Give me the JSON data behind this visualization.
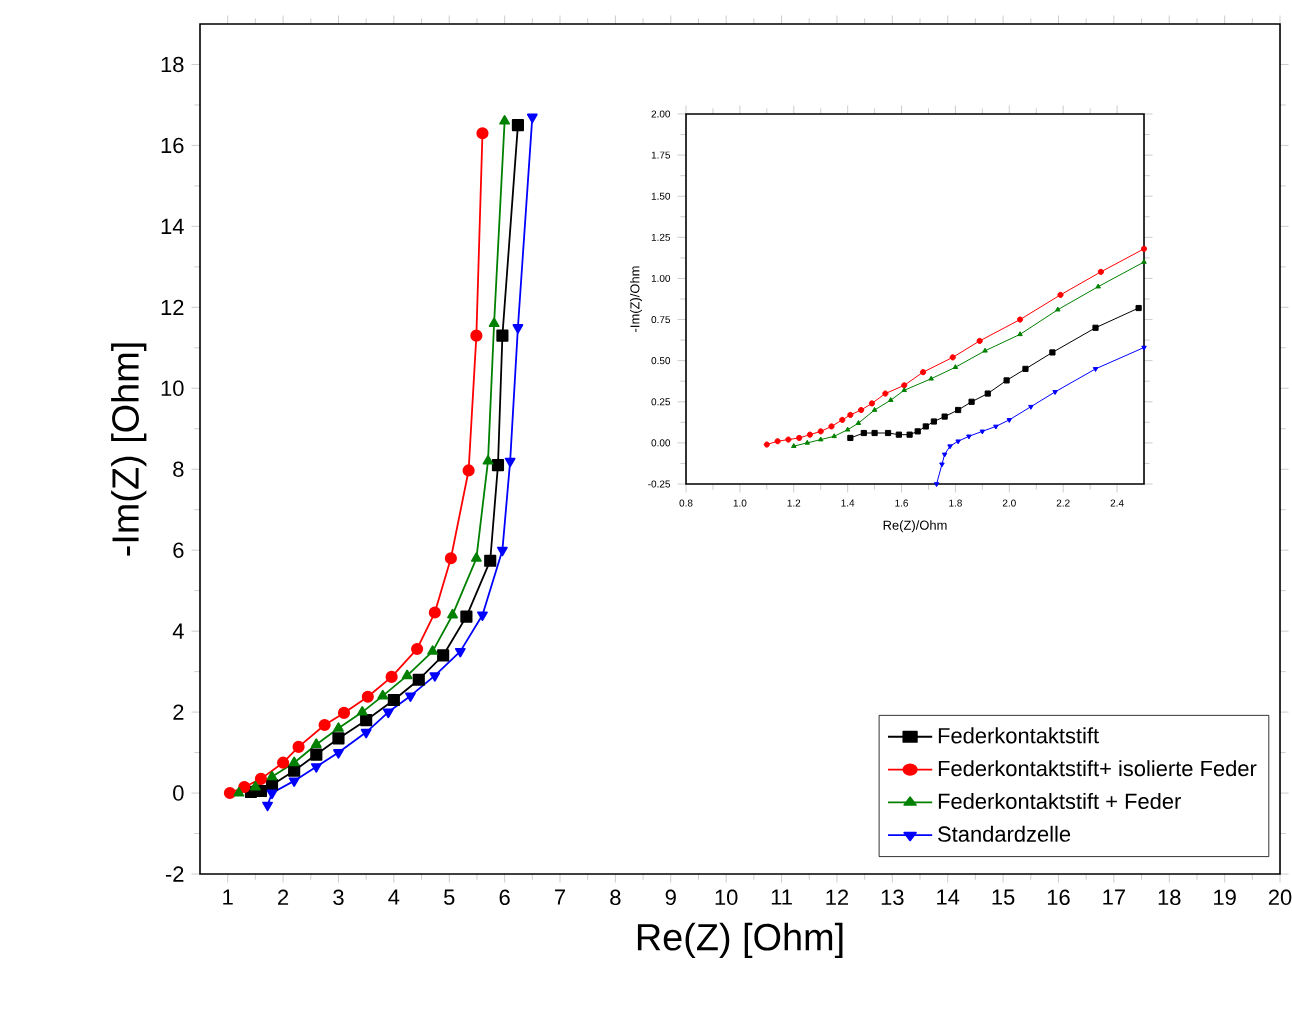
{
  "chart_data": [
    {
      "type": "line",
      "xlabel": "Re(Z) [Ohm]",
      "ylabel": "-Im(Z) [Ohm]",
      "xlim": [
        0.5,
        20
      ],
      "ylim": [
        -2,
        19
      ],
      "xticks": [
        1,
        2,
        3,
        4,
        5,
        6,
        7,
        8,
        9,
        10,
        11,
        12,
        13,
        14,
        15,
        16,
        17,
        18,
        19,
        20
      ],
      "yticks": [
        -2,
        0,
        2,
        4,
        6,
        8,
        10,
        12,
        14,
        16,
        18
      ],
      "legend": "bottom right",
      "line_style": "solid",
      "series": [
        {
          "name": "Federkontaktstift",
          "color": "#000000",
          "marker": "square",
          "x": [
            1.42,
            1.6,
            1.8,
            2.2,
            2.6,
            3.0,
            3.5,
            4.0,
            4.45,
            4.89,
            5.31,
            5.74,
            5.88,
            5.96,
            6.24
          ],
          "values": [
            0.03,
            0.05,
            0.2,
            0.55,
            0.95,
            1.35,
            1.8,
            2.3,
            2.8,
            3.4,
            4.36,
            5.74,
            8.1,
            11.3,
            16.5
          ]
        },
        {
          "name": "Federkontaktstift+ isolierte Feder",
          "color": "#ff0000",
          "marker": "circle",
          "x": [
            1.04,
            1.3,
            1.6,
            2.0,
            2.28,
            2.75,
            3.1,
            3.53,
            3.96,
            4.42,
            4.74,
            5.03,
            5.35,
            5.49,
            5.6
          ],
          "values": [
            0,
            0.15,
            0.35,
            0.75,
            1.14,
            1.68,
            1.98,
            2.38,
            2.87,
            3.56,
            4.46,
            5.8,
            7.97,
            11.3,
            16.3
          ]
        },
        {
          "name": "Federkontaktstift + Feder",
          "color": "#008000",
          "marker": "triangle",
          "x": [
            1.2,
            1.5,
            1.8,
            2.2,
            2.6,
            3.0,
            3.43,
            3.8,
            4.24,
            4.7,
            5.06,
            5.49,
            5.7,
            5.81,
            6.0
          ],
          "values": [
            0,
            0.15,
            0.4,
            0.75,
            1.2,
            1.6,
            2.0,
            2.4,
            2.9,
            3.5,
            4.4,
            5.8,
            8.2,
            11.6,
            16.6
          ]
        },
        {
          "name": "Standardzelle",
          "color": "#0000ff",
          "marker": "triangle-down",
          "x": [
            1.72,
            1.8,
            2.2,
            2.6,
            3.0,
            3.5,
            3.9,
            4.3,
            4.74,
            5.2,
            5.6,
            5.96,
            6.1,
            6.24,
            6.5
          ],
          "values": [
            -0.3,
            0,
            0.3,
            0.65,
            1.0,
            1.5,
            2.0,
            2.4,
            2.9,
            3.5,
            4.4,
            6.0,
            8.2,
            11.5,
            16.7
          ]
        }
      ]
    },
    {
      "type": "line",
      "xlabel": "Re(Z)/Ohm",
      "ylabel": "-Im(Z)/Ohm",
      "xlim": [
        0.8,
        2.5
      ],
      "ylim": [
        -0.25,
        2.0
      ],
      "xticks": [
        0.8,
        {
          "value": 1,
          "label": "1.0"
        },
        1.2,
        1.4,
        1.6,
        1.8,
        {
          "value": 2,
          "label": "2.0"
        },
        2.2,
        2.4
      ],
      "yticks": [
        -0.25,
        {
          "value": 0,
          "label": "0.00"
        },
        0.25,
        {
          "value": 0.5,
          "label": "0.50"
        },
        0.75,
        {
          "value": 1,
          "label": "1.00"
        },
        1.25,
        {
          "value": 1.5,
          "label": "1.50"
        },
        1.75,
        {
          "value": 2,
          "label": "2.00"
        }
      ],
      "legend": false,
      "line_style": "solid",
      "series": [
        {
          "color": "#000000",
          "marker": "square",
          "x": [
            1.41,
            1.46,
            1.5,
            1.55,
            1.59,
            1.63,
            1.66,
            1.69,
            1.72,
            1.76,
            1.81,
            1.86,
            1.92,
            1.99,
            2.06,
            2.16,
            2.32,
            2.48
          ],
          "values": [
            0.03,
            0.06,
            0.06,
            0.06,
            0.05,
            0.05,
            0.07,
            0.1,
            0.13,
            0.16,
            0.2,
            0.25,
            0.3,
            0.38,
            0.45,
            0.55,
            0.7,
            0.82
          ]
        },
        {
          "color": "#ff0000",
          "marker": "circle",
          "x": [
            1.1,
            1.14,
            1.18,
            1.22,
            1.26,
            1.3,
            1.34,
            1.38,
            1.41,
            1.45,
            1.49,
            1.54,
            1.61,
            1.68,
            1.79,
            1.89,
            2.04,
            2.19,
            2.34,
            2.5
          ],
          "values": [
            -0.01,
            0.01,
            0.02,
            0.03,
            0.05,
            0.07,
            0.1,
            0.14,
            0.17,
            0.2,
            0.24,
            0.3,
            0.35,
            0.43,
            0.52,
            0.62,
            0.75,
            0.9,
            1.04,
            1.18
          ]
        },
        {
          "color": "#008000",
          "marker": "triangle",
          "x": [
            1.2,
            1.25,
            1.3,
            1.35,
            1.4,
            1.44,
            1.5,
            1.56,
            1.61,
            1.71,
            1.8,
            1.91,
            2.04,
            2.18,
            2.33,
            2.5
          ],
          "values": [
            -0.02,
            0,
            0.02,
            0.04,
            0.08,
            0.12,
            0.2,
            0.26,
            0.32,
            0.39,
            0.46,
            0.56,
            0.66,
            0.81,
            0.95,
            1.1
          ]
        },
        {
          "color": "#0000ff",
          "marker": "triangle-down",
          "x": [
            1.73,
            1.75,
            1.76,
            1.78,
            1.81,
            1.85,
            1.9,
            1.95,
            2.0,
            2.08,
            2.17,
            2.32,
            2.5
          ],
          "values": [
            -0.25,
            -0.13,
            -0.07,
            -0.02,
            0.01,
            0.04,
            0.07,
            0.1,
            0.14,
            0.22,
            0.31,
            0.45,
            0.58
          ]
        }
      ]
    }
  ]
}
